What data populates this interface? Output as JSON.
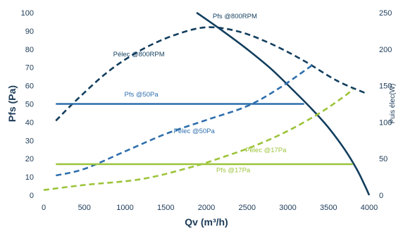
{
  "chart_data": {
    "type": "line",
    "xlabel": "Qv (m³/h)",
    "ylabel": "Pfs (Pa)",
    "y2label": "Puis élec(W)",
    "xlim": [
      0,
      4000
    ],
    "ylim": [
      0,
      100
    ],
    "y2lim": [
      0,
      250
    ],
    "xticks": [
      "0",
      "500",
      "1000",
      "1500",
      "2000",
      "2500",
      "3000",
      "3500",
      "4000"
    ],
    "yticks": [
      "0",
      "10",
      "20",
      "30",
      "40",
      "50",
      "60",
      "70",
      "80",
      "90",
      "100"
    ],
    "y2ticks": [
      "0",
      "50",
      "100",
      "150",
      "200",
      "250"
    ],
    "grid": false,
    "colors": {
      "dark": "#123e5e",
      "blue": "#2f6fad",
      "green": "#9cc43a",
      "text": "#1b3a57"
    },
    "series": [
      {
        "name": "Pfs @800RPM",
        "axis": "left",
        "style": "solid",
        "color": "#123e5e",
        "x": [
          1880,
          2200,
          2500,
          2800,
          3100,
          3300,
          3500,
          3700,
          3850,
          3950,
          4000
        ],
        "y": [
          100,
          90,
          80,
          69,
          56,
          47,
          37,
          25,
          14,
          5,
          0
        ]
      },
      {
        "name": "Pélec @800RPM",
        "axis": "right",
        "style": "dashed",
        "color": "#123e5e",
        "x": [
          150,
          400,
          800,
          1200,
          1600,
          2000,
          2400,
          2800,
          3200,
          3600,
          3950
        ],
        "y": [
          102,
          130,
          170,
          199,
          219,
          230,
          224,
          207,
          184,
          157,
          140
        ]
      },
      {
        "name": "Pfs @50Pa",
        "axis": "left",
        "style": "solid",
        "color": "#2f6fad",
        "x": [
          150,
          3200
        ],
        "y": [
          50,
          50
        ]
      },
      {
        "name": "Pélec @50Pa",
        "axis": "right",
        "style": "dashed",
        "color": "#2f6fad",
        "x": [
          150,
          500,
          1000,
          1500,
          2000,
          2500,
          2900,
          3300
        ],
        "y": [
          27,
          36,
          60,
          84,
          103,
          122,
          147,
          178
        ]
      },
      {
        "name": "Pfs @17Pa",
        "axis": "left",
        "style": "solid",
        "color": "#9cc43a",
        "x": [
          150,
          3800
        ],
        "y": [
          17,
          17
        ]
      },
      {
        "name": "Pélec @17Pa",
        "axis": "right",
        "style": "dashed",
        "color": "#9cc43a",
        "x": [
          0,
          500,
          1200,
          1800,
          2200,
          2600,
          3000,
          3400,
          3700,
          3800
        ],
        "y": [
          7,
          14,
          22,
          38,
          52,
          68,
          88,
          113,
          136,
          145
        ]
      }
    ],
    "annotations": [
      {
        "text": "Pfs @800RPM",
        "color": "#123e5e",
        "x": 2350,
        "y": 97,
        "axis": "left"
      },
      {
        "text": "Pélec @800RPM",
        "color": "#123e5e",
        "x": 1170,
        "y": 76,
        "axis": "left"
      },
      {
        "text": "Pfs @50Pa",
        "color": "#2f6fad",
        "x": 1200,
        "y": 54,
        "axis": "left"
      },
      {
        "text": "Pélec @50Pa",
        "color": "#2f6fad",
        "x": 1850,
        "y": 34,
        "axis": "left"
      },
      {
        "text": "Pélec @17Pa",
        "color": "#9cc43a",
        "x": 2730,
        "y": 23.5,
        "axis": "left"
      },
      {
        "text": "Pfs @17Pa",
        "color": "#9cc43a",
        "x": 2330,
        "y": 12.5,
        "axis": "left"
      }
    ]
  }
}
